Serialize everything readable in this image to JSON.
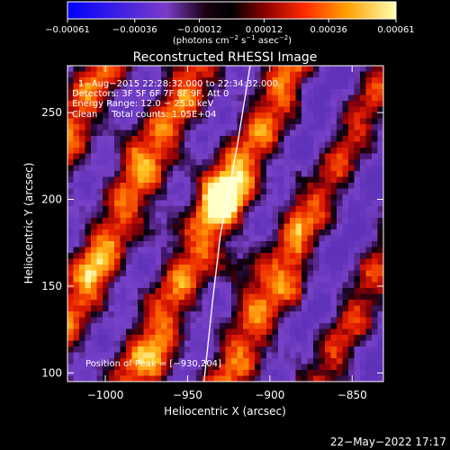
{
  "chart_data": {
    "type": "heatmap",
    "title": "Reconstructed RHESSI Image",
    "xlabel": "Heliocentric X (arcsec)",
    "ylabel": "Heliocentric Y (arcsec)",
    "xlim": [
      -1023,
      -831
    ],
    "ylim": [
      95,
      277
    ],
    "x_ticks": [
      -1000,
      -950,
      -900,
      -850
    ],
    "x_tick_labels": [
      "−1000",
      "−950",
      "−900",
      "−850"
    ],
    "y_ticks": [
      100,
      150,
      200,
      250
    ],
    "y_tick_labels": [
      "100",
      "150",
      "200",
      "250"
    ],
    "colorbar": {
      "range": [
        -0.00061,
        0.00061
      ],
      "ticks": [
        -0.00061,
        -0.00036,
        -0.00012,
        0.00012,
        0.00036,
        0.00061
      ],
      "tick_labels": [
        "−0.00061",
        "−0.00036",
        "−0.00012",
        "0.00012",
        "0.00036",
        "0.00061"
      ],
      "unit_parts": [
        "(photons cm",
        "−2",
        " s",
        "−1",
        " asec",
        "−2",
        ")"
      ]
    },
    "info_lines": [
      "1−Aug−2015 22:28:32.000 to 22:34:32.000",
      "Detectors: 3F 5F 6F 7F 8F 9F, Att 0",
      "Energy Range: 12.0 − 25.0 keV",
      "Clean     Total counts: 1.05E+04"
    ],
    "peak_label": "Position of Peak = [−930,204]",
    "peak": {
      "x": -930,
      "y": 204
    },
    "limb": [
      [
        -940,
        95
      ],
      [
        -935,
        140
      ],
      [
        -930,
        180
      ],
      [
        -920,
        230
      ],
      [
        -912,
        277
      ]
    ],
    "grid": false,
    "colormap": "RHESSI std gamma (blue-purple-black-red-yellow-white)"
  },
  "footer": {
    "timestamp": "22−May−2022 17:17"
  }
}
